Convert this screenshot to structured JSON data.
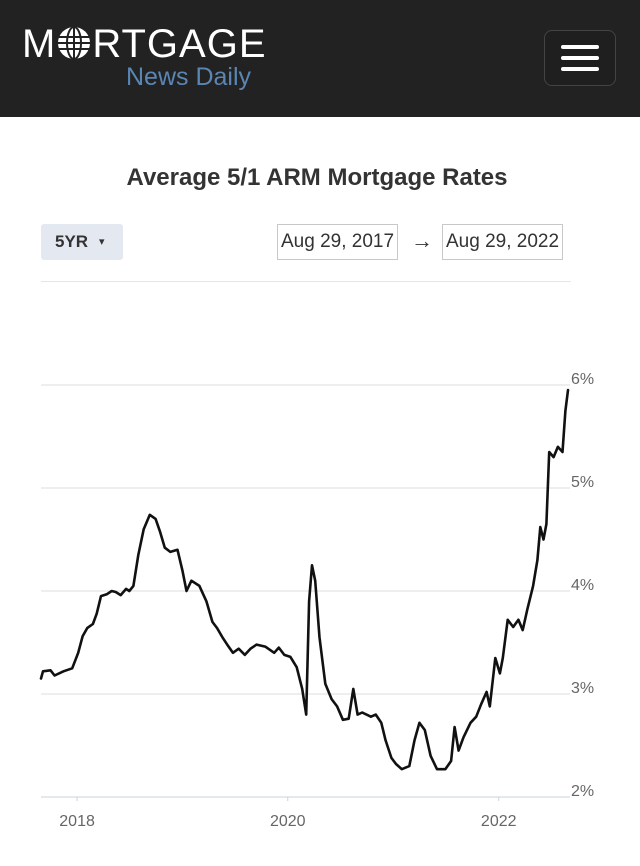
{
  "header": {
    "logo_main": "M",
    "logo_main_rest": "RTGAGE",
    "logo_sub": "News Daily",
    "menu_icon": "hamburger-menu-icon",
    "logo_icon": "globe-icon"
  },
  "controls": {
    "period_label": "5YR",
    "period_caret": "▾",
    "start_date": "Aug 29, 2017",
    "arrow": "→",
    "end_date": "Aug 29, 2022"
  },
  "colors": {
    "header_bg": "#222222",
    "logo_sub": "#5a86b4",
    "line": "#111111",
    "grid": "#dddddd"
  },
  "chart_data": {
    "type": "line",
    "title": "Average 5/1 ARM Mortgage Rates",
    "xlabel": "",
    "ylabel": "",
    "ylim": [
      2,
      6
    ],
    "x_ticks": [
      "2018",
      "2020",
      "2022"
    ],
    "y_ticks": [
      "2%",
      "3%",
      "4%",
      "5%",
      "6%"
    ],
    "grid": "horizontal",
    "series": [
      {
        "values": [
          {
            "date": "2017-08-29",
            "rate": 3.15
          },
          {
            "date": "2017-09-05",
            "rate": 3.22
          },
          {
            "date": "2017-10-01",
            "rate": 3.23
          },
          {
            "date": "2017-10-15",
            "rate": 3.18
          },
          {
            "date": "2017-11-15",
            "rate": 3.22
          },
          {
            "date": "2017-12-15",
            "rate": 3.25
          },
          {
            "date": "2018-01-05",
            "rate": 3.4
          },
          {
            "date": "2018-01-20",
            "rate": 3.56
          },
          {
            "date": "2018-02-05",
            "rate": 3.64
          },
          {
            "date": "2018-02-25",
            "rate": 3.68
          },
          {
            "date": "2018-03-10",
            "rate": 3.78
          },
          {
            "date": "2018-03-25",
            "rate": 3.95
          },
          {
            "date": "2018-04-15",
            "rate": 3.97
          },
          {
            "date": "2018-05-01",
            "rate": 4.0
          },
          {
            "date": "2018-05-15",
            "rate": 3.99
          },
          {
            "date": "2018-06-01",
            "rate": 3.96
          },
          {
            "date": "2018-06-20",
            "rate": 4.02
          },
          {
            "date": "2018-07-01",
            "rate": 4.0
          },
          {
            "date": "2018-07-15",
            "rate": 4.05
          },
          {
            "date": "2018-08-01",
            "rate": 4.35
          },
          {
            "date": "2018-08-20",
            "rate": 4.6
          },
          {
            "date": "2018-09-10",
            "rate": 4.74
          },
          {
            "date": "2018-09-30",
            "rate": 4.7
          },
          {
            "date": "2018-10-15",
            "rate": 4.58
          },
          {
            "date": "2018-11-01",
            "rate": 4.42
          },
          {
            "date": "2018-11-20",
            "rate": 4.38
          },
          {
            "date": "2018-12-15",
            "rate": 4.4
          },
          {
            "date": "2019-01-01",
            "rate": 4.2
          },
          {
            "date": "2019-01-15",
            "rate": 4.0
          },
          {
            "date": "2019-02-01",
            "rate": 4.1
          },
          {
            "date": "2019-03-01",
            "rate": 4.05
          },
          {
            "date": "2019-03-25",
            "rate": 3.9
          },
          {
            "date": "2019-04-15",
            "rate": 3.7
          },
          {
            "date": "2019-05-01",
            "rate": 3.64
          },
          {
            "date": "2019-05-20",
            "rate": 3.55
          },
          {
            "date": "2019-06-05",
            "rate": 3.48
          },
          {
            "date": "2019-06-25",
            "rate": 3.4
          },
          {
            "date": "2019-07-15",
            "rate": 3.44
          },
          {
            "date": "2019-08-05",
            "rate": 3.38
          },
          {
            "date": "2019-08-25",
            "rate": 3.44
          },
          {
            "date": "2019-09-15",
            "rate": 3.48
          },
          {
            "date": "2019-10-15",
            "rate": 3.46
          },
          {
            "date": "2019-11-15",
            "rate": 3.4
          },
          {
            "date": "2019-12-01",
            "rate": 3.45
          },
          {
            "date": "2019-12-20",
            "rate": 3.38
          },
          {
            "date": "2020-01-10",
            "rate": 3.36
          },
          {
            "date": "2020-02-01",
            "rate": 3.26
          },
          {
            "date": "2020-02-20",
            "rate": 3.05
          },
          {
            "date": "2020-03-05",
            "rate": 2.8
          },
          {
            "date": "2020-03-15",
            "rate": 3.9
          },
          {
            "date": "2020-03-25",
            "rate": 4.25
          },
          {
            "date": "2020-04-05",
            "rate": 4.1
          },
          {
            "date": "2020-04-20",
            "rate": 3.55
          },
          {
            "date": "2020-05-10",
            "rate": 3.1
          },
          {
            "date": "2020-06-01",
            "rate": 2.95
          },
          {
            "date": "2020-06-20",
            "rate": 2.88
          },
          {
            "date": "2020-07-10",
            "rate": 2.75
          },
          {
            "date": "2020-07-30",
            "rate": 2.76
          },
          {
            "date": "2020-08-15",
            "rate": 3.05
          },
          {
            "date": "2020-08-30",
            "rate": 2.8
          },
          {
            "date": "2020-09-15",
            "rate": 2.82
          },
          {
            "date": "2020-10-15",
            "rate": 2.78
          },
          {
            "date": "2020-11-01",
            "rate": 2.8
          },
          {
            "date": "2020-11-20",
            "rate": 2.72
          },
          {
            "date": "2020-12-05",
            "rate": 2.55
          },
          {
            "date": "2020-12-25",
            "rate": 2.38
          },
          {
            "date": "2021-01-10",
            "rate": 2.32
          },
          {
            "date": "2021-01-30",
            "rate": 2.27
          },
          {
            "date": "2021-02-25",
            "rate": 2.3
          },
          {
            "date": "2021-03-15",
            "rate": 2.55
          },
          {
            "date": "2021-04-01",
            "rate": 2.72
          },
          {
            "date": "2021-04-20",
            "rate": 2.65
          },
          {
            "date": "2021-05-10",
            "rate": 2.4
          },
          {
            "date": "2021-06-01",
            "rate": 2.27
          },
          {
            "date": "2021-06-30",
            "rate": 2.27
          },
          {
            "date": "2021-07-20",
            "rate": 2.35
          },
          {
            "date": "2021-08-01",
            "rate": 2.68
          },
          {
            "date": "2021-08-15",
            "rate": 2.45
          },
          {
            "date": "2021-09-01",
            "rate": 2.58
          },
          {
            "date": "2021-09-25",
            "rate": 2.72
          },
          {
            "date": "2021-10-15",
            "rate": 2.78
          },
          {
            "date": "2021-11-01",
            "rate": 2.9
          },
          {
            "date": "2021-11-20",
            "rate": 3.02
          },
          {
            "date": "2021-12-01",
            "rate": 2.88
          },
          {
            "date": "2021-12-20",
            "rate": 3.35
          },
          {
            "date": "2022-01-05",
            "rate": 3.2
          },
          {
            "date": "2022-01-15",
            "rate": 3.35
          },
          {
            "date": "2022-02-01",
            "rate": 3.72
          },
          {
            "date": "2022-02-20",
            "rate": 3.65
          },
          {
            "date": "2022-03-10",
            "rate": 3.72
          },
          {
            "date": "2022-03-25",
            "rate": 3.62
          },
          {
            "date": "2022-04-10",
            "rate": 3.82
          },
          {
            "date": "2022-04-30",
            "rate": 4.05
          },
          {
            "date": "2022-05-15",
            "rate": 4.3
          },
          {
            "date": "2022-05-25",
            "rate": 4.62
          },
          {
            "date": "2022-06-05",
            "rate": 4.5
          },
          {
            "date": "2022-06-15",
            "rate": 4.65
          },
          {
            "date": "2022-06-25",
            "rate": 5.35
          },
          {
            "date": "2022-07-10",
            "rate": 5.3
          },
          {
            "date": "2022-07-25",
            "rate": 5.4
          },
          {
            "date": "2022-08-10",
            "rate": 5.35
          },
          {
            "date": "2022-08-20",
            "rate": 5.75
          },
          {
            "date": "2022-08-29",
            "rate": 5.95
          }
        ]
      }
    ]
  }
}
